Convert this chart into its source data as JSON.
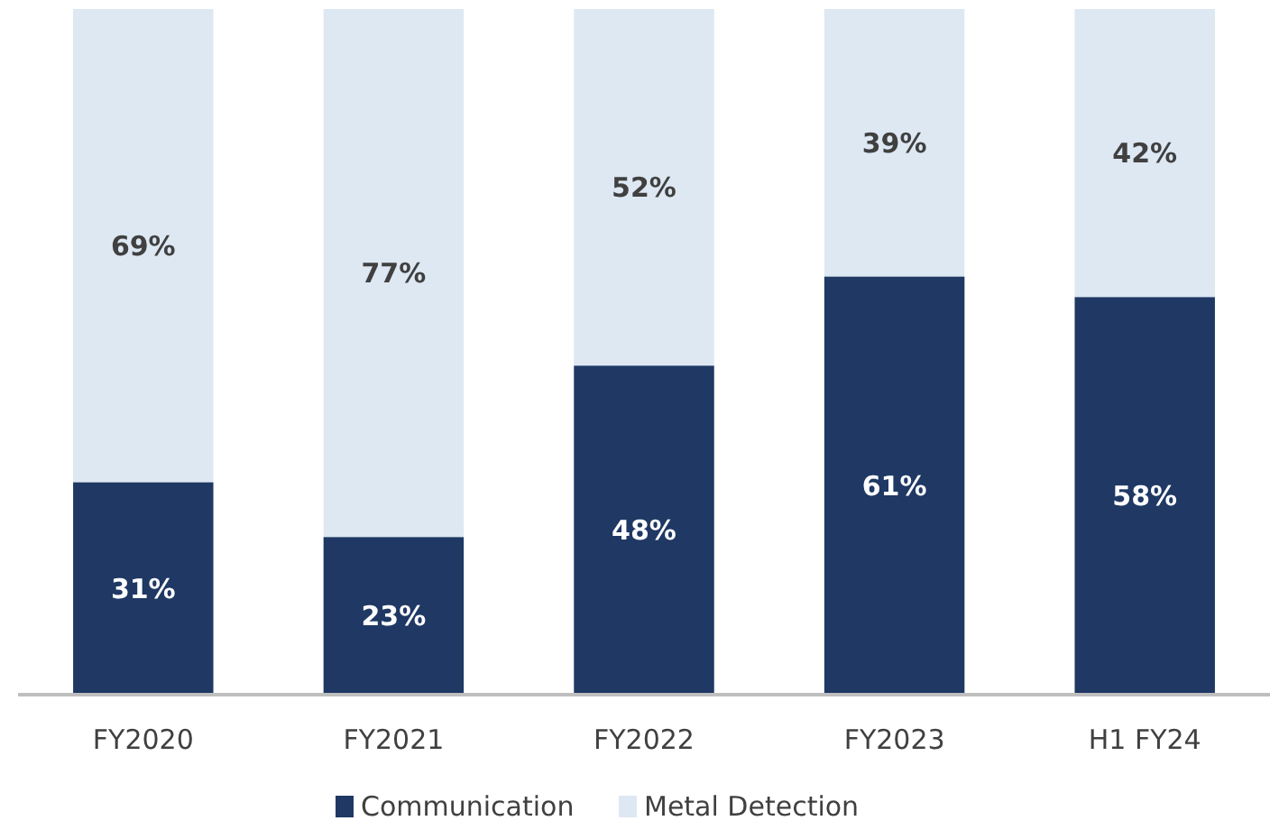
{
  "chart_data": {
    "type": "bar",
    "stacked": true,
    "categories": [
      "FY2020",
      "FY2021",
      "FY2022",
      "FY2023",
      "H1 FY24"
    ],
    "series": [
      {
        "name": "Communication",
        "color": "#1f3864",
        "values": [
          31,
          23,
          48,
          61,
          58
        ],
        "value_labels": [
          "31%",
          "23%",
          "48%",
          "61%",
          "58%"
        ]
      },
      {
        "name": "Metal Detection",
        "color": "#dde8f3",
        "values": [
          69,
          77,
          52,
          39,
          42
        ],
        "value_labels": [
          "69%",
          "77%",
          "52%",
          "39%",
          "42%"
        ]
      }
    ],
    "legend": "bottom"
  }
}
